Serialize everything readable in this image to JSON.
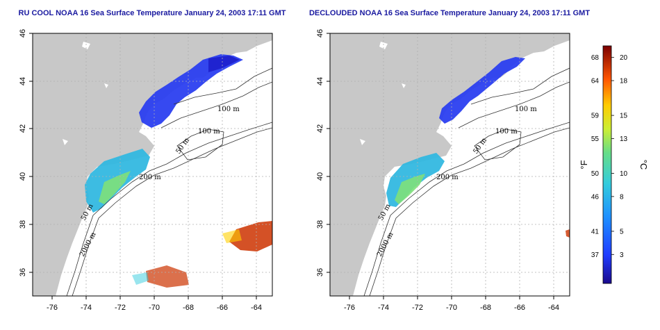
{
  "chart_data": [
    {
      "type": "heatmap",
      "title": "RU COOL NOAA 16 Sea Surface Temperature January 24, 2003 17:11 GMT",
      "x_ticks": [
        -76,
        -74,
        -72,
        -70,
        -68,
        -66,
        -64
      ],
      "y_ticks": [
        36,
        38,
        40,
        42,
        44,
        46
      ],
      "xlim": [
        -77,
        -63
      ],
      "ylim": [
        35,
        46
      ],
      "grid": true,
      "isobath_labels": [
        "100 m",
        "100 m",
        "50 m",
        "200 m",
        "50 m",
        "2000 m"
      ]
    },
    {
      "type": "heatmap",
      "title": "DECLOUDED NOAA 16 Sea Surface Temperature January 24, 2003 17:11 GMT",
      "x_ticks": [
        -76,
        -74,
        -72,
        -70,
        -68,
        -66,
        -64
      ],
      "y_ticks": [
        36,
        38,
        40,
        42,
        44,
        46
      ],
      "xlim": [
        -77,
        -63
      ],
      "ylim": [
        35,
        46
      ],
      "grid": true,
      "isobath_labels": [
        "100 m",
        "100 m",
        "50 m",
        "200 m",
        "50 m",
        "2000 m"
      ]
    }
  ],
  "colorbar": {
    "unit_left": "°F",
    "unit_right": "°C",
    "fahrenheit_ticks": [
      "68",
      "64",
      "59",
      "55",
      "50",
      "46",
      "41",
      "37"
    ],
    "celsius_ticks": [
      "20",
      "18",
      "15",
      "13",
      "10",
      "8",
      "5",
      "3"
    ],
    "celsius_values": [
      20,
      18,
      15,
      13,
      10,
      8,
      5,
      3
    ],
    "range_c": [
      0.5,
      21
    ]
  },
  "colors": {
    "land": "#c8c8c8",
    "title": "#1a1aa0",
    "grid": "#b0b0b0"
  }
}
